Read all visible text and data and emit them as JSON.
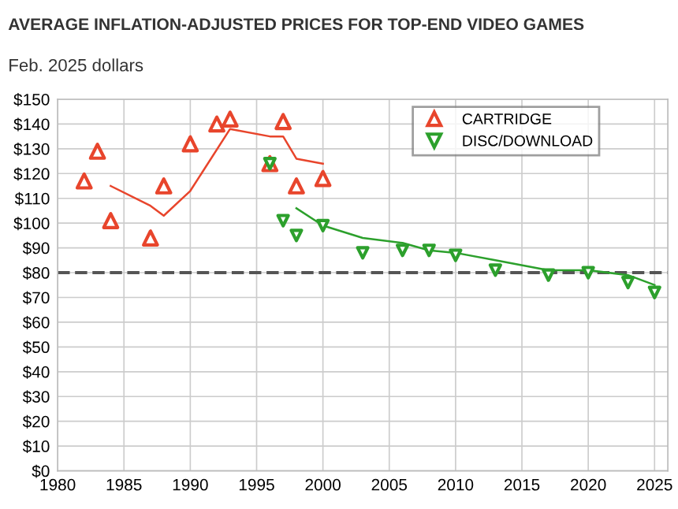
{
  "chart_data": {
    "type": "scatter",
    "title": "AVERAGE INFLATION-ADJUSTED PRICES FOR TOP-END VIDEO GAMES",
    "subtitle": "Feb. 2025 dollars",
    "series": [
      {
        "name": "CARTRIDGE",
        "marker": "triangle",
        "color": "#e8452c",
        "x": [
          1982,
          1983,
          1984,
          1987,
          1988,
          1990,
          1992,
          1993,
          1996,
          1997,
          1998,
          2000
        ],
        "values": [
          117,
          129,
          101,
          94,
          115,
          132,
          140,
          142,
          124,
          141,
          115,
          118
        ]
      },
      {
        "type": "line",
        "marker": "none",
        "color": "#e8452c",
        "x": [
          1984,
          1987,
          1988,
          1990,
          1993,
          1996,
          1997,
          1998,
          2000
        ],
        "values": [
          115,
          107,
          103,
          113,
          138,
          135,
          135,
          126,
          124
        ]
      },
      {
        "name": "DISC/DOWNLOAD",
        "marker": "triangle_down",
        "color": "#2ca02c",
        "x": [
          1996,
          1997,
          1998,
          2000,
          2003,
          2006,
          2008,
          2010,
          2013,
          2017,
          2020,
          2023,
          2025
        ],
        "values": [
          124,
          101,
          95,
          99,
          88,
          89,
          89,
          87,
          81,
          79,
          80,
          76,
          72
        ]
      },
      {
        "type": "line",
        "marker": "none",
        "color": "#2ca02c",
        "x": [
          1998,
          2000,
          2003,
          2006,
          2008,
          2010,
          2013,
          2017,
          2020,
          2023,
          2025
        ],
        "values": [
          106,
          99,
          94,
          92,
          89,
          88,
          85,
          81,
          81,
          79,
          75
        ]
      }
    ],
    "xlim": [
      1980,
      2026
    ],
    "xticks": [
      1980,
      1985,
      1990,
      1995,
      2000,
      2005,
      2010,
      2015,
      2020,
      2025
    ],
    "ylim": [
      0,
      150
    ],
    "yticks": [
      {
        "value": 0,
        "label": "$0"
      },
      {
        "value": 10,
        "label": "$10"
      },
      {
        "value": 20,
        "label": "$20"
      },
      {
        "value": 30,
        "label": "$30"
      },
      {
        "value": 40,
        "label": "$40"
      },
      {
        "value": 50,
        "label": "$50"
      },
      {
        "value": 60,
        "label": "$60"
      },
      {
        "value": 70,
        "label": "$70"
      },
      {
        "value": 80,
        "label": "$80"
      },
      {
        "value": 90,
        "label": "$90"
      },
      {
        "value": 100,
        "label": "$100"
      },
      {
        "value": 110,
        "label": "$110"
      },
      {
        "value": 120,
        "label": "$120"
      },
      {
        "value": 130,
        "label": "$130"
      },
      {
        "value": 140,
        "label": "$140"
      },
      {
        "value": 150,
        "label": "$150"
      }
    ],
    "ref_lines": [
      {
        "axis": "y",
        "value": 80,
        "color": "#555555",
        "line_style": "dashed"
      }
    ],
    "grid": true,
    "legend": "top right"
  }
}
